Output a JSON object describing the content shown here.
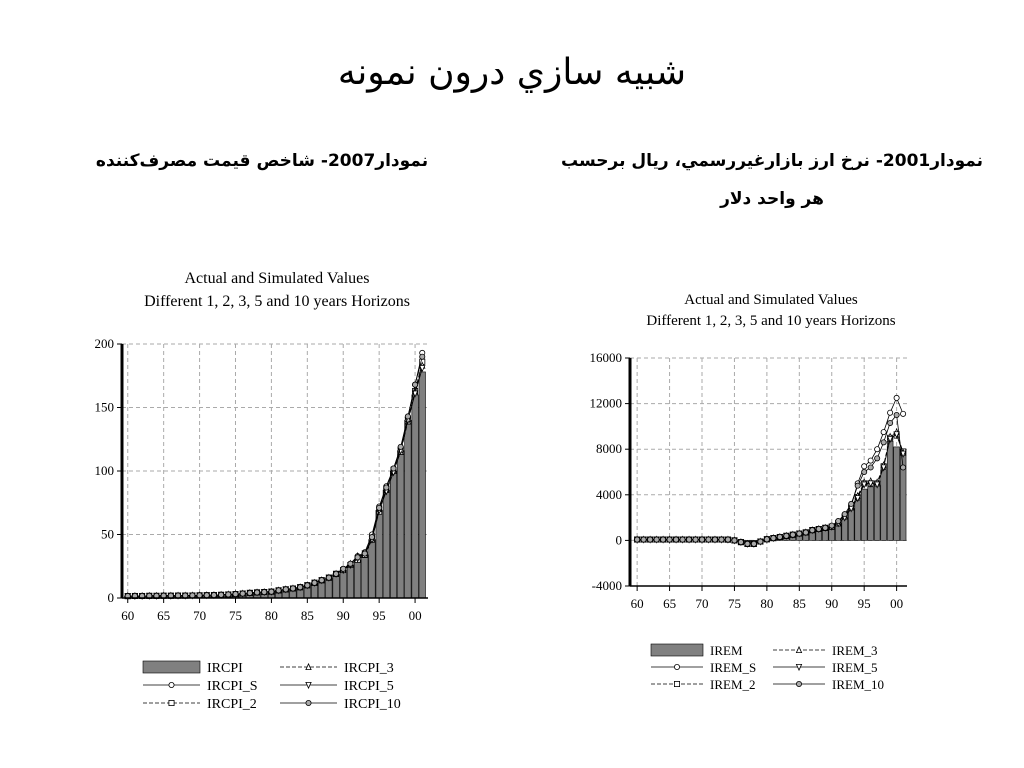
{
  "slide": {
    "title": "شبيه سازي درون نمونه",
    "captions": [
      "نمودار2007- شاخص قيمت مصرف‌كننده",
      "نمودار2001- نرخ ارز بازارغيررسمي، ريال برحسب هر واحد دلار"
    ]
  },
  "chart_data": [
    {
      "type": "bar",
      "title": "Actual and Simulated Values",
      "subtitle": "Different 1, 2, 3, 5 and 10 years Horizons",
      "x": [
        1960,
        1961,
        1962,
        1963,
        1964,
        1965,
        1966,
        1967,
        1968,
        1969,
        1970,
        1971,
        1972,
        1973,
        1974,
        1975,
        1976,
        1977,
        1978,
        1979,
        1980,
        1981,
        1982,
        1983,
        1984,
        1985,
        1986,
        1987,
        1988,
        1989,
        1990,
        1991,
        1992,
        1993,
        1994,
        1995,
        1996,
        1997,
        1998,
        1999,
        2000,
        2001
      ],
      "xlim": [
        1959.2,
        2001.8
      ],
      "xticks": [
        {
          "value": 1960,
          "label": "60"
        },
        {
          "value": 1965,
          "label": "65"
        },
        {
          "value": 1970,
          "label": "70"
        },
        {
          "value": 1975,
          "label": "75"
        },
        {
          "value": 1980,
          "label": "80"
        },
        {
          "value": 1985,
          "label": "85"
        },
        {
          "value": 1990,
          "label": "90"
        },
        {
          "value": 1995,
          "label": "95"
        },
        {
          "value": 2000,
          "label": "00"
        }
      ],
      "ylim": [
        0,
        200
      ],
      "yticks": [
        0,
        50,
        100,
        150,
        200
      ],
      "grid": true,
      "series": [
        {
          "name": "IRCPI",
          "kind": "bar",
          "color": "#808080",
          "values": [
            1.5,
            1.6,
            1.6,
            1.7,
            1.7,
            1.8,
            1.8,
            1.9,
            1.9,
            2.0,
            2.1,
            2.2,
            2.3,
            2.5,
            2.8,
            3.1,
            3.5,
            4.0,
            4.4,
            4.7,
            5.0,
            6.0,
            6.8,
            7.5,
            8.5,
            10,
            12,
            14,
            16,
            19,
            22,
            26,
            30,
            34,
            46,
            69,
            85,
            100,
            116,
            140,
            160,
            178
          ]
        },
        {
          "name": "IRCPI_S",
          "kind": "line",
          "color": "#000000",
          "marker": "circle",
          "dash": false,
          "values": [
            1.5,
            1.6,
            1.6,
            1.7,
            1.7,
            1.8,
            1.8,
            1.9,
            1.9,
            2.0,
            2.1,
            2.2,
            2.3,
            2.5,
            2.8,
            3.1,
            3.5,
            4.0,
            4.4,
            4.7,
            5.0,
            6.0,
            6.8,
            7.5,
            8.5,
            10,
            12,
            14,
            16,
            19,
            23,
            27,
            33,
            36,
            50,
            72,
            88,
            102,
            118,
            142,
            168,
            193
          ]
        },
        {
          "name": "IRCPI_2",
          "kind": "line",
          "color": "#000000",
          "marker": "square",
          "dash": true,
          "values": [
            1.5,
            1.6,
            1.6,
            1.7,
            1.7,
            1.8,
            1.8,
            1.9,
            1.9,
            2.0,
            2.1,
            2.2,
            2.3,
            2.5,
            2.8,
            3.1,
            3.5,
            4.0,
            4.4,
            4.7,
            5.0,
            6.0,
            6.8,
            7.5,
            8.5,
            10,
            12,
            14,
            16,
            19,
            22,
            26,
            30,
            34,
            47,
            68,
            86,
            101,
            117,
            141,
            163,
            186
          ]
        },
        {
          "name": "IRCPI_3",
          "kind": "line",
          "color": "#000000",
          "marker": "triangle",
          "dash": true,
          "values": [
            1.5,
            1.6,
            1.6,
            1.7,
            1.7,
            1.8,
            1.8,
            1.9,
            1.9,
            2.0,
            2.1,
            2.2,
            2.3,
            2.5,
            2.8,
            3.1,
            3.5,
            4.0,
            4.4,
            4.7,
            5.0,
            6.0,
            6.8,
            7.5,
            8.5,
            10,
            12,
            14,
            16,
            19,
            22,
            27,
            33,
            34,
            46,
            70,
            85,
            100,
            115,
            139,
            162,
            183
          ]
        },
        {
          "name": "IRCPI_5",
          "kind": "line",
          "color": "#000000",
          "marker": "triangle-down",
          "dash": false,
          "values": [
            1.5,
            1.6,
            1.6,
            1.7,
            1.7,
            1.8,
            1.8,
            1.9,
            1.9,
            2.0,
            2.1,
            2.2,
            2.3,
            2.5,
            2.8,
            3.1,
            3.5,
            4.0,
            4.4,
            4.7,
            5.0,
            6.0,
            6.8,
            7.5,
            8.5,
            10,
            12,
            14,
            16,
            19,
            22,
            26,
            31,
            35,
            46,
            69,
            84,
            99,
            116,
            140,
            161,
            181
          ]
        },
        {
          "name": "IRCPI_10",
          "kind": "line",
          "color": "#000000",
          "marker": "circle-dot",
          "dash": false,
          "values": [
            1.5,
            1.6,
            1.6,
            1.7,
            1.7,
            1.8,
            1.8,
            1.9,
            1.9,
            2.0,
            2.1,
            2.2,
            2.3,
            2.5,
            2.8,
            3.1,
            3.5,
            4.0,
            4.4,
            4.7,
            5.0,
            6.0,
            6.8,
            7.5,
            8.5,
            10,
            12,
            14,
            16,
            19,
            23,
            27,
            32,
            35,
            48,
            71,
            87,
            102,
            119,
            143,
            168,
            190
          ]
        }
      ]
    },
    {
      "type": "bar",
      "title": "Actual and Simulated Values",
      "subtitle": "Different 1, 2, 3, 5 and 10 years Horizons",
      "x": [
        1960,
        1961,
        1962,
        1963,
        1964,
        1965,
        1966,
        1967,
        1968,
        1969,
        1970,
        1971,
        1972,
        1973,
        1974,
        1975,
        1976,
        1977,
        1978,
        1979,
        1980,
        1981,
        1982,
        1983,
        1984,
        1985,
        1986,
        1987,
        1988,
        1989,
        1990,
        1991,
        1992,
        1993,
        1994,
        1995,
        1996,
        1997,
        1998,
        1999,
        2000,
        2001
      ],
      "xlim": [
        1958.9,
        2001.6
      ],
      "xticks": [
        {
          "value": 1960,
          "label": "60"
        },
        {
          "value": 1965,
          "label": "65"
        },
        {
          "value": 1970,
          "label": "70"
        },
        {
          "value": 1975,
          "label": "75"
        },
        {
          "value": 1980,
          "label": "80"
        },
        {
          "value": 1985,
          "label": "85"
        },
        {
          "value": 1990,
          "label": "90"
        },
        {
          "value": 1995,
          "label": "95"
        },
        {
          "value": 2000,
          "label": "00"
        }
      ],
      "ylim": [
        -4000,
        16000
      ],
      "yticks": [
        -4000,
        0,
        4000,
        8000,
        12000,
        16000
      ],
      "grid": true,
      "series": [
        {
          "name": "IREM",
          "kind": "bar",
          "color": "#808080",
          "values": [
            75,
            75,
            75,
            75,
            75,
            75,
            75,
            75,
            75,
            75,
            75,
            75,
            75,
            75,
            70,
            0,
            -150,
            -300,
            -300,
            -100,
            100,
            200,
            300,
            400,
            500,
            600,
            700,
            900,
            1000,
            1100,
            1200,
            1500,
            2000,
            2800,
            3500,
            4500,
            4700,
            4800,
            6200,
            8700,
            8200,
            8000
          ]
        },
        {
          "name": "IREM_S",
          "kind": "line",
          "color": "#000000",
          "marker": "circle",
          "dash": false,
          "values": [
            75,
            75,
            75,
            75,
            75,
            75,
            75,
            75,
            75,
            75,
            75,
            75,
            75,
            75,
            70,
            0,
            -150,
            -300,
            -300,
            -100,
            100,
            200,
            300,
            400,
            500,
            600,
            700,
            900,
            1000,
            1100,
            1200,
            1600,
            2200,
            3000,
            5000,
            6500,
            7000,
            8000,
            9500,
            11200,
            12500,
            11100
          ]
        },
        {
          "name": "IREM_2",
          "kind": "line",
          "color": "#000000",
          "marker": "square",
          "dash": true,
          "values": [
            75,
            75,
            75,
            75,
            75,
            75,
            75,
            75,
            75,
            75,
            75,
            75,
            75,
            75,
            70,
            0,
            -150,
            -300,
            -300,
            -100,
            100,
            200,
            300,
            400,
            500,
            600,
            700,
            900,
            1000,
            1100,
            1200,
            1500,
            2100,
            2900,
            3800,
            5000,
            5000,
            5000,
            6500,
            9000,
            9200,
            7800
          ]
        },
        {
          "name": "IREM_3",
          "kind": "line",
          "color": "#000000",
          "marker": "triangle",
          "dash": true,
          "values": [
            75,
            75,
            75,
            75,
            75,
            75,
            75,
            75,
            75,
            75,
            75,
            75,
            75,
            75,
            70,
            0,
            -150,
            -300,
            -300,
            -100,
            100,
            200,
            300,
            400,
            500,
            600,
            700,
            900,
            1000,
            1100,
            1200,
            1500,
            2100,
            2900,
            3900,
            5100,
            5200,
            5100,
            6600,
            9100,
            9500,
            7700
          ]
        },
        {
          "name": "IREM_5",
          "kind": "line",
          "color": "#000000",
          "marker": "triangle-down",
          "dash": false,
          "values": [
            75,
            75,
            75,
            75,
            75,
            75,
            75,
            75,
            75,
            75,
            75,
            75,
            75,
            75,
            70,
            0,
            -150,
            -300,
            -300,
            -100,
            100,
            200,
            300,
            400,
            500,
            600,
            700,
            900,
            1000,
            1100,
            1200,
            1500,
            2000,
            2800,
            3700,
            4900,
            5000,
            4900,
            6400,
            8900,
            9300,
            7600
          ]
        },
        {
          "name": "IREM_10",
          "kind": "line",
          "color": "#000000",
          "marker": "circle-dot",
          "dash": false,
          "values": [
            75,
            75,
            75,
            75,
            75,
            75,
            75,
            75,
            75,
            75,
            75,
            75,
            75,
            75,
            70,
            0,
            -150,
            -300,
            -300,
            -100,
            100,
            200,
            300,
            400,
            500,
            600,
            700,
            900,
            1000,
            1100,
            1300,
            1700,
            2300,
            3200,
            4800,
            6000,
            6400,
            7200,
            8600,
            10300,
            11000,
            6400
          ]
        }
      ]
    }
  ]
}
